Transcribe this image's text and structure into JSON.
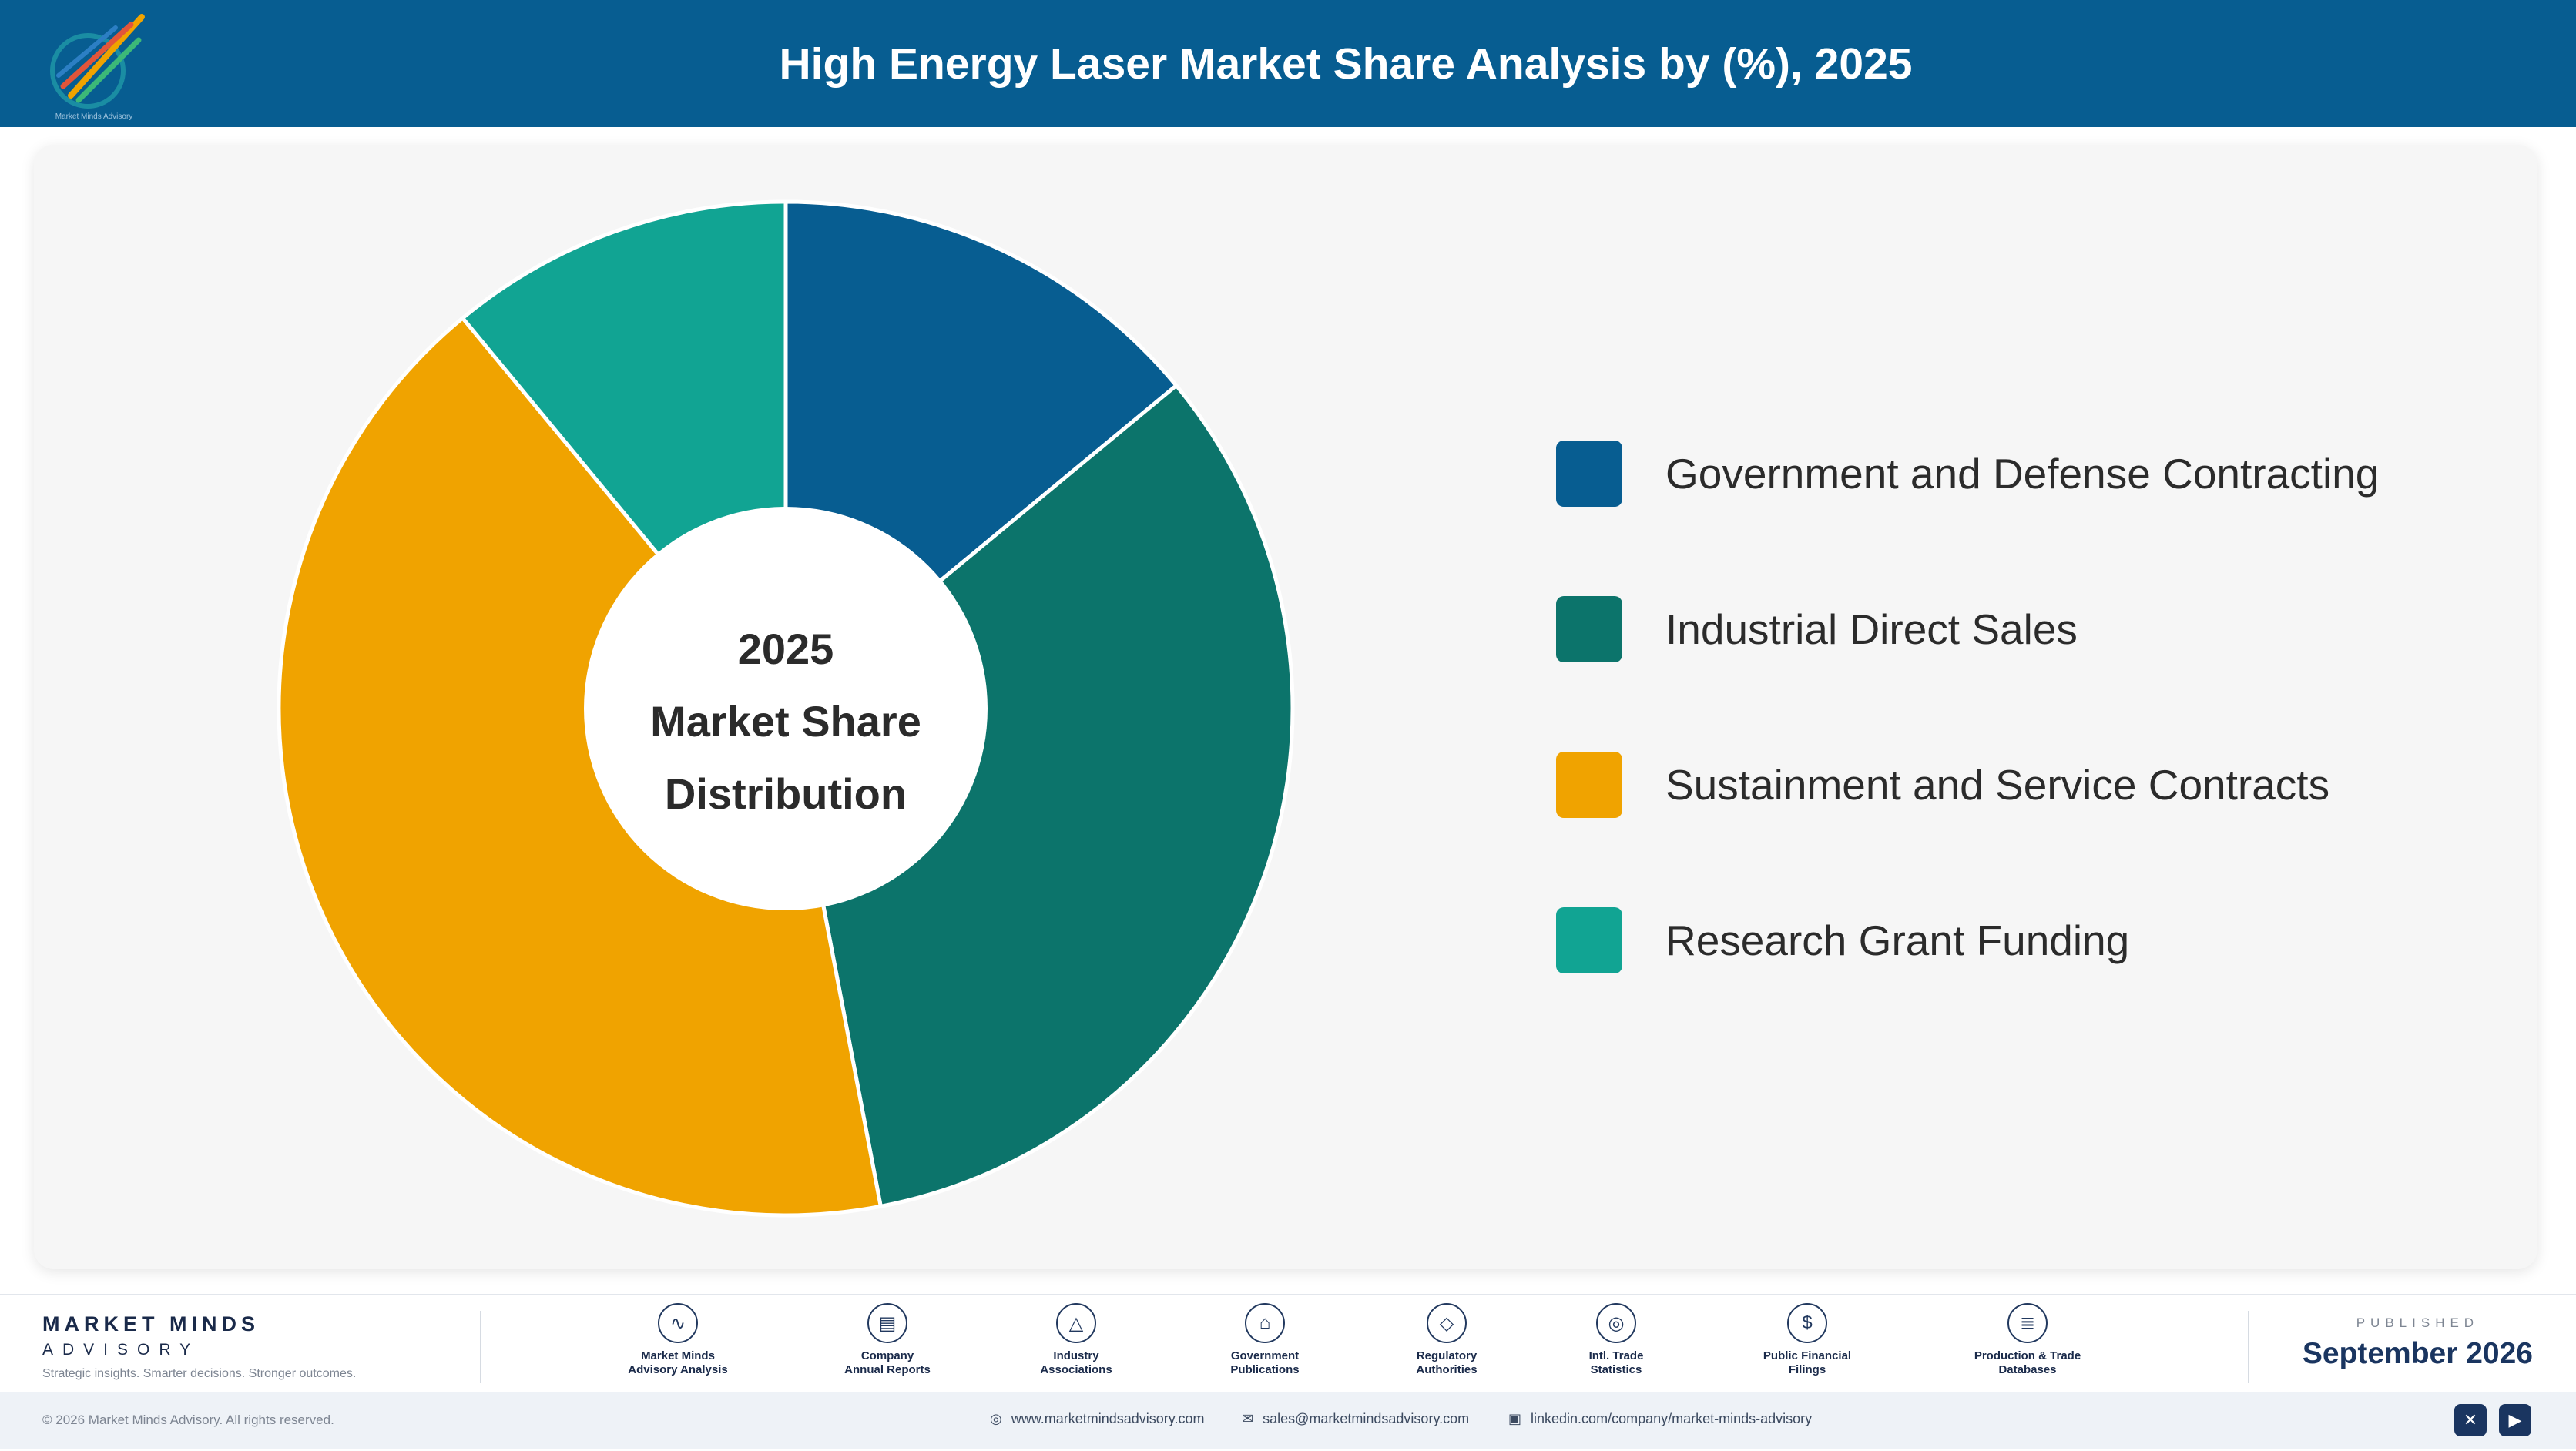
{
  "header": {
    "title": "High Energy Laser Market Share Analysis by (%), 2025",
    "logo_text": "Market Minds Advisory"
  },
  "chart_data": {
    "type": "pie",
    "donut": true,
    "center_label": [
      "2025",
      "Market Share",
      "Distribution"
    ],
    "categories": [
      "Government and Defense Contracting",
      "Industrial Direct Sales",
      "Sustainment and Service Contracts",
      "Research Grant Funding"
    ],
    "values": [
      14,
      33,
      42,
      11
    ],
    "colors": [
      "#075d91",
      "#0c746b",
      "#f0a300",
      "#11a493"
    ],
    "legend": "right"
  },
  "footer": {
    "brand_name": "MARKET MINDS",
    "brand_sub": "ADVISORY",
    "tagline": "Strategic insights. Smarter decisions. Stronger outcomes.",
    "sources": [
      {
        "icon": "line-chart-icon",
        "glyph": "∿",
        "label": "Market Minds\nAdvisory Analysis"
      },
      {
        "icon": "document-icon",
        "glyph": "▤",
        "label": "Company\nAnnual Reports"
      },
      {
        "icon": "network-icon",
        "glyph": "△",
        "label": "Industry\nAssociations"
      },
      {
        "icon": "government-building-icon",
        "glyph": "⌂",
        "label": "Government\nPublications"
      },
      {
        "icon": "shield-icon",
        "glyph": "◇",
        "label": "Regulatory\nAuthorities"
      },
      {
        "icon": "globe-icon",
        "glyph": "◎",
        "label": "Intl. Trade\nStatistics"
      },
      {
        "icon": "dollar-icon",
        "glyph": "$",
        "label": "Public Financial\nFilings"
      },
      {
        "icon": "database-icon",
        "glyph": "≣",
        "label": "Production & Trade\nDatabases"
      }
    ],
    "published_label": "PUBLISHED",
    "published_date": "September 2026",
    "copyright": "© 2026 Market Minds Advisory. All rights reserved.",
    "website": "www.marketmindsadvisory.com",
    "email": "sales@marketmindsadvisory.com",
    "linkedin": "linkedin.com/company/market-minds-advisory"
  }
}
